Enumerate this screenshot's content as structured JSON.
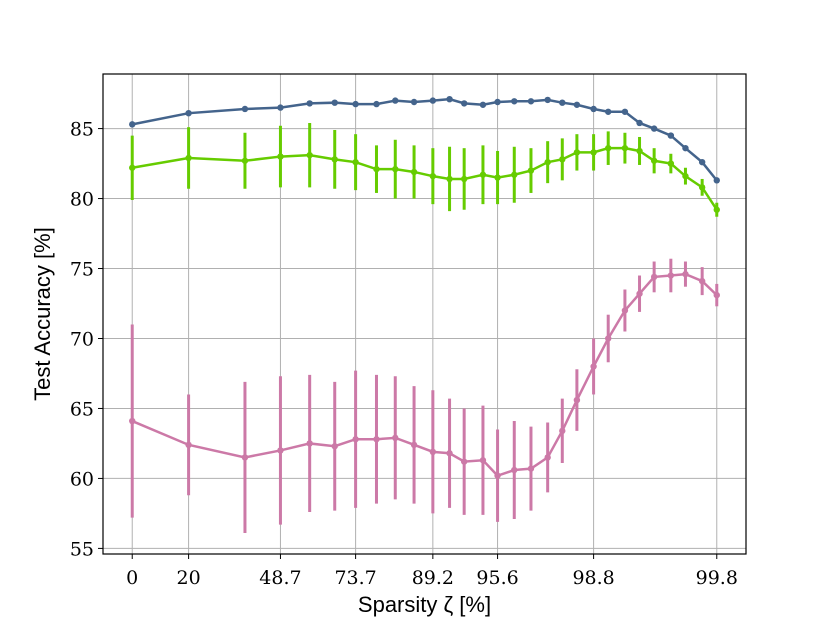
{
  "chart_data": {
    "type": "errorbar-line",
    "xlabel": "Sparsity ζ [%]",
    "ylabel": "Test Accuracy [%]",
    "x": [
      0,
      2.7,
      5.4,
      7.1,
      8.5,
      9.7,
      10.7,
      11.7,
      12.6,
      13.5,
      14.4,
      15.2,
      15.9,
      16.8,
      17.5,
      18.3,
      19.1,
      19.9,
      20.6,
      21.3,
      22.1,
      22.8,
      23.6,
      24.3,
      25.0,
      25.8,
      26.5,
      27.3,
      28.0
    ],
    "series": [
      {
        "color": "#44648c",
        "values": [
          85.3,
          86.1,
          86.4,
          86.5,
          86.8,
          86.85,
          86.75,
          86.75,
          87.0,
          86.9,
          87.0,
          87.1,
          86.8,
          86.7,
          86.9,
          86.95,
          86.95,
          87.05,
          86.85,
          86.7,
          86.4,
          86.2,
          86.2,
          85.4,
          85.0,
          84.5,
          83.6,
          82.6,
          81.3
        ]
      },
      {
        "color": "#66cc00",
        "values": [
          82.2,
          82.9,
          82.7,
          83.0,
          83.1,
          82.8,
          82.6,
          82.1,
          82.1,
          81.9,
          81.6,
          81.4,
          81.4,
          81.7,
          81.5,
          81.7,
          82.0,
          82.6,
          82.8,
          83.3,
          83.3,
          83.6,
          83.6,
          83.4,
          82.7,
          82.5,
          81.6,
          80.8,
          79.2
        ],
        "errors": [
          2.3,
          2.2,
          2.0,
          2.2,
          2.3,
          2.1,
          2.0,
          1.7,
          2.1,
          1.9,
          2.0,
          2.3,
          2.2,
          2.1,
          1.9,
          2.0,
          1.6,
          1.5,
          1.5,
          1.3,
          1.3,
          1.2,
          1.1,
          1.0,
          0.9,
          0.7,
          0.6,
          0.6,
          0.5
        ]
      },
      {
        "color": "#cc79a7",
        "values": [
          64.1,
          62.4,
          61.5,
          62.0,
          62.5,
          62.3,
          62.8,
          62.8,
          62.9,
          62.4,
          61.9,
          61.8,
          61.2,
          61.3,
          60.2,
          60.6,
          60.7,
          61.5,
          63.4,
          65.6,
          68.0,
          70.0,
          72.0,
          73.2,
          74.4,
          74.5,
          74.6,
          74.1,
          73.1
        ],
        "errors": [
          6.9,
          3.6,
          5.4,
          5.3,
          4.9,
          4.6,
          4.9,
          4.6,
          4.4,
          4.2,
          4.4,
          3.9,
          3.8,
          3.9,
          3.3,
          3.5,
          3.0,
          2.5,
          2.3,
          2.2,
          2.0,
          1.7,
          1.5,
          1.3,
          1.1,
          1.2,
          0.9,
          1.0,
          0.8
        ]
      }
    ],
    "xlim": [
      -1.4,
      29.4
    ],
    "xticks": [
      {
        "value": 0,
        "label": "0"
      },
      {
        "value": 2.7,
        "label": "20"
      },
      {
        "value": 7.1,
        "label": "48.7"
      },
      {
        "value": 10.7,
        "label": "73.7"
      },
      {
        "value": 14.4,
        "label": "89.2"
      },
      {
        "value": 17.5,
        "label": "95.6"
      },
      {
        "value": 22.1,
        "label": "98.8"
      },
      {
        "value": 28.0,
        "label": "99.8"
      }
    ],
    "ylim": [
      54.6,
      88.9
    ],
    "yticks": [
      55,
      60,
      65,
      70,
      75,
      80,
      85
    ],
    "grid": true
  }
}
